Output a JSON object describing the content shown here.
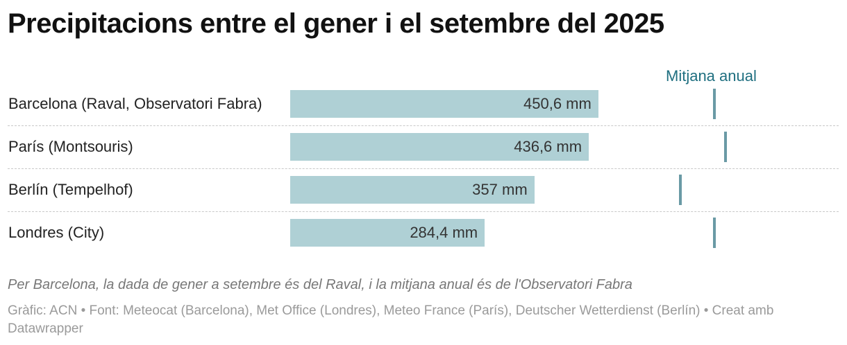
{
  "title": "Precipitacions entre el gener i el setembre del 2025",
  "legend": {
    "marker_label": "Mitjana anual"
  },
  "note": "Per Barcelona, la dada de gener a setembre és del Raval, i la mitjana anual és de l'Observatori Fabra",
  "source": "Gràfic: ACN • Font: Meteocat (Barcelona), Met Office (Londres), Meteo France (París), Deutscher Wetterdienst (Berlín) • Creat amb Datawrapper",
  "colors": {
    "bar": "#afd0d5",
    "marker": "#6a9aa5",
    "legend_text": "#1f6f80"
  },
  "chart_data": {
    "type": "bar",
    "orientation": "horizontal",
    "categories": [
      "Barcelona (Raval, Observatori Fabra)",
      "París (Montsouris)",
      "Berlín (Tempelhof)",
      "Londres (City)"
    ],
    "values": [
      450.6,
      436.6,
      357,
      284.4
    ],
    "value_labels": [
      "450,6 mm",
      "436,6 mm",
      "357 mm",
      "284,4 mm"
    ],
    "annual_average": [
      620,
      637,
      571,
      620
    ],
    "xlim": [
      0,
      800
    ],
    "legend_placement": "top-right",
    "grid": false
  }
}
